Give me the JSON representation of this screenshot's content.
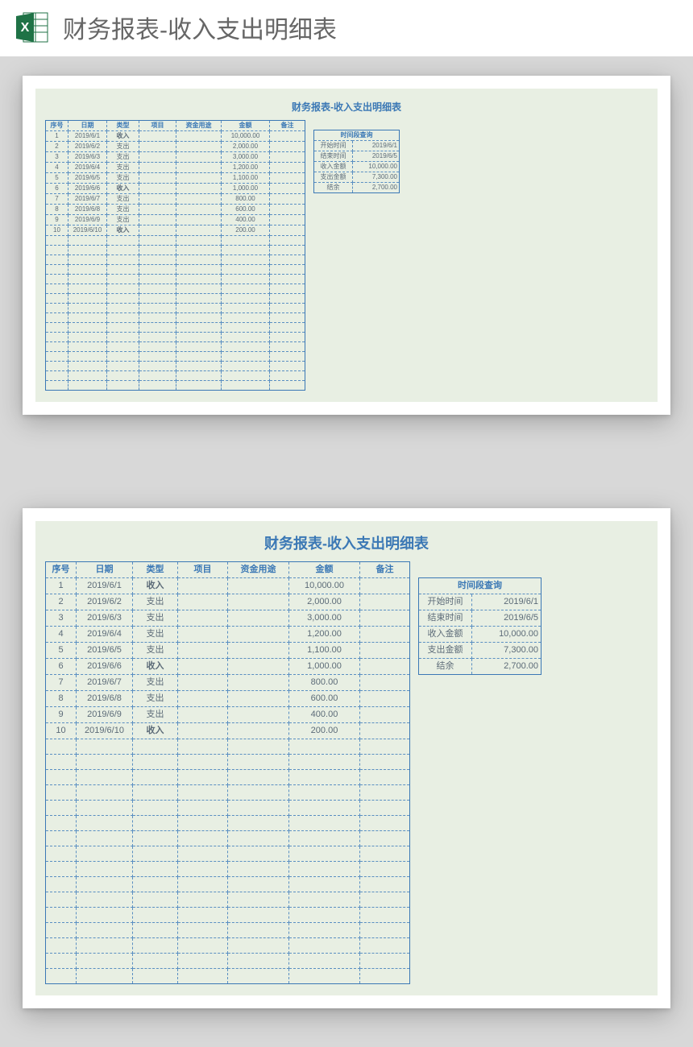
{
  "header": {
    "app_icon": "excel-icon",
    "title": "财务报表-收入支出明细表"
  },
  "sheet": {
    "title": "财务报表-收入支出明细表",
    "title_color": "#3b78b5",
    "background_color": "#e8efe3",
    "border_color": "#3b78b5",
    "grid_dash_color": "#5a8fc2",
    "type_income_color": "#d9453a",
    "type_expense_color": "#5c6b78",
    "columns": [
      "序号",
      "日期",
      "类型",
      "项目",
      "资金用途",
      "金额",
      "备注"
    ],
    "rows": [
      {
        "seq": "1",
        "date": "2019/6/1",
        "type": "收入",
        "item": "",
        "use": "",
        "amount": "10,000.00",
        "note": ""
      },
      {
        "seq": "2",
        "date": "2019/6/2",
        "type": "支出",
        "item": "",
        "use": "",
        "amount": "2,000.00",
        "note": ""
      },
      {
        "seq": "3",
        "date": "2019/6/3",
        "type": "支出",
        "item": "",
        "use": "",
        "amount": "3,000.00",
        "note": ""
      },
      {
        "seq": "4",
        "date": "2019/6/4",
        "type": "支出",
        "item": "",
        "use": "",
        "amount": "1,200.00",
        "note": ""
      },
      {
        "seq": "5",
        "date": "2019/6/5",
        "type": "支出",
        "item": "",
        "use": "",
        "amount": "1,100.00",
        "note": ""
      },
      {
        "seq": "6",
        "date": "2019/6/6",
        "type": "收入",
        "item": "",
        "use": "",
        "amount": "1,000.00",
        "note": ""
      },
      {
        "seq": "7",
        "date": "2019/6/7",
        "type": "支出",
        "item": "",
        "use": "",
        "amount": "800.00",
        "note": ""
      },
      {
        "seq": "8",
        "date": "2019/6/8",
        "type": "支出",
        "item": "",
        "use": "",
        "amount": "600.00",
        "note": ""
      },
      {
        "seq": "9",
        "date": "2019/6/9",
        "type": "支出",
        "item": "",
        "use": "",
        "amount": "400.00",
        "note": ""
      },
      {
        "seq": "10",
        "date": "2019/6/10",
        "type": "收入",
        "item": "",
        "use": "",
        "amount": "200.00",
        "note": ""
      }
    ],
    "empty_rows": 16,
    "income_label": "收入",
    "expense_label": "支出"
  },
  "summary": {
    "title": "时间段查询",
    "rows": [
      {
        "k": "开始时间",
        "v": "2019/6/1"
      },
      {
        "k": "结束时间",
        "v": "2019/6/5"
      },
      {
        "k": "收入金额",
        "v": "10,000.00"
      },
      {
        "k": "支出金额",
        "v": "7,300.00"
      },
      {
        "k": "结余",
        "v": "2,700.00"
      }
    ]
  }
}
